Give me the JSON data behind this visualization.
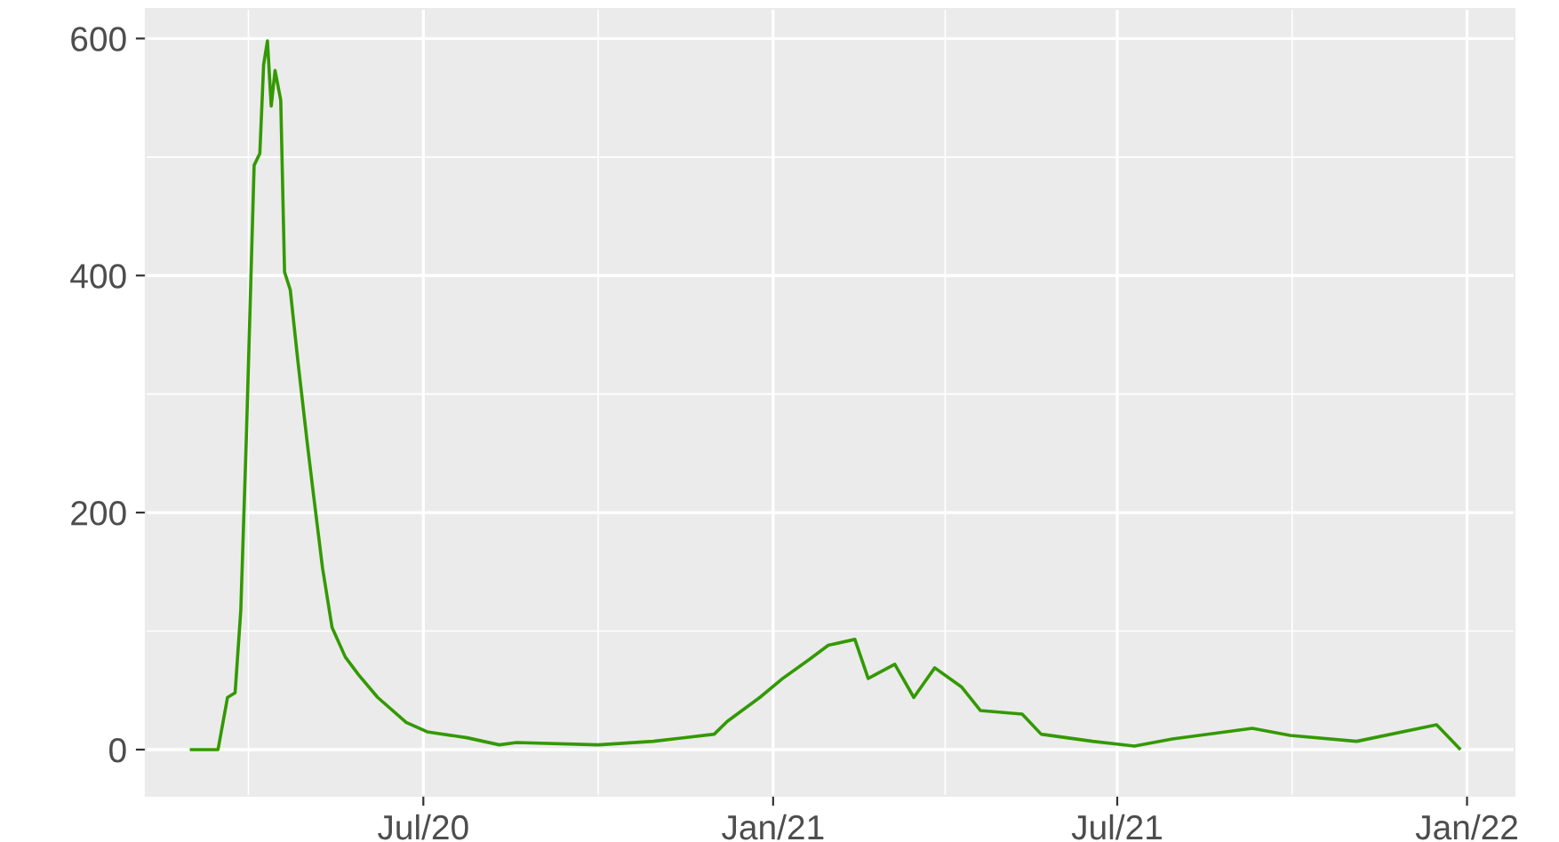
{
  "chart_data": {
    "type": "line",
    "x": [
      "2020-03-01",
      "2020-03-15",
      "2020-03-20",
      "2020-03-24",
      "2020-03-27",
      "2020-03-30",
      "2020-04-03",
      "2020-04-06",
      "2020-04-08",
      "2020-04-10",
      "2020-04-12",
      "2020-04-14",
      "2020-04-17",
      "2020-04-19",
      "2020-04-22",
      "2020-04-26",
      "2020-05-01",
      "2020-05-04",
      "2020-05-09",
      "2020-05-14",
      "2020-05-21",
      "2020-05-28",
      "2020-06-07",
      "2020-06-22",
      "2020-07-03",
      "2020-07-24",
      "2020-08-10",
      "2020-08-19",
      "2020-10-01",
      "2020-10-30",
      "2020-12-01",
      "2020-12-08",
      "2020-12-25",
      "2021-01-06",
      "2021-01-20",
      "2021-01-30",
      "2021-02-13",
      "2021-02-20",
      "2021-03-06",
      "2021-03-16",
      "2021-03-27",
      "2021-04-10",
      "2021-04-20",
      "2021-05-12",
      "2021-05-22",
      "2021-06-18",
      "2021-07-10",
      "2021-07-30",
      "2021-09-10",
      "2021-09-30",
      "2021-11-04",
      "2021-12-16",
      "2021-12-28"
    ],
    "series": [
      {
        "color": "#339900",
        "values": [
          0,
          0,
          44,
          48,
          118,
          268,
          493,
          503,
          578,
          598,
          543,
          573,
          548,
          403,
          388,
          328,
          258,
          218,
          153,
          103,
          78,
          63,
          44,
          23,
          15,
          10,
          4,
          6,
          4,
          7,
          13,
          24,
          44,
          60,
          76,
          88,
          93,
          60,
          72,
          44,
          69,
          53,
          33,
          30,
          13,
          7,
          3,
          9,
          18,
          12,
          7,
          21,
          1
        ]
      }
    ],
    "xlim": [
      "2020-02-06",
      "2022-01-26"
    ],
    "xticks": [
      {
        "value": "2020-07-01",
        "label": "Jul/20"
      },
      {
        "value": "2021-01-01",
        "label": "Jan/21"
      },
      {
        "value": "2021-07-01",
        "label": "Jul/21"
      },
      {
        "value": "2022-01-01",
        "label": "Jan/22"
      }
    ],
    "ylim": [
      -39,
      625
    ],
    "yticks": [
      0,
      200,
      400,
      600
    ],
    "grid": true,
    "line_style": "solid",
    "marker": "none"
  }
}
